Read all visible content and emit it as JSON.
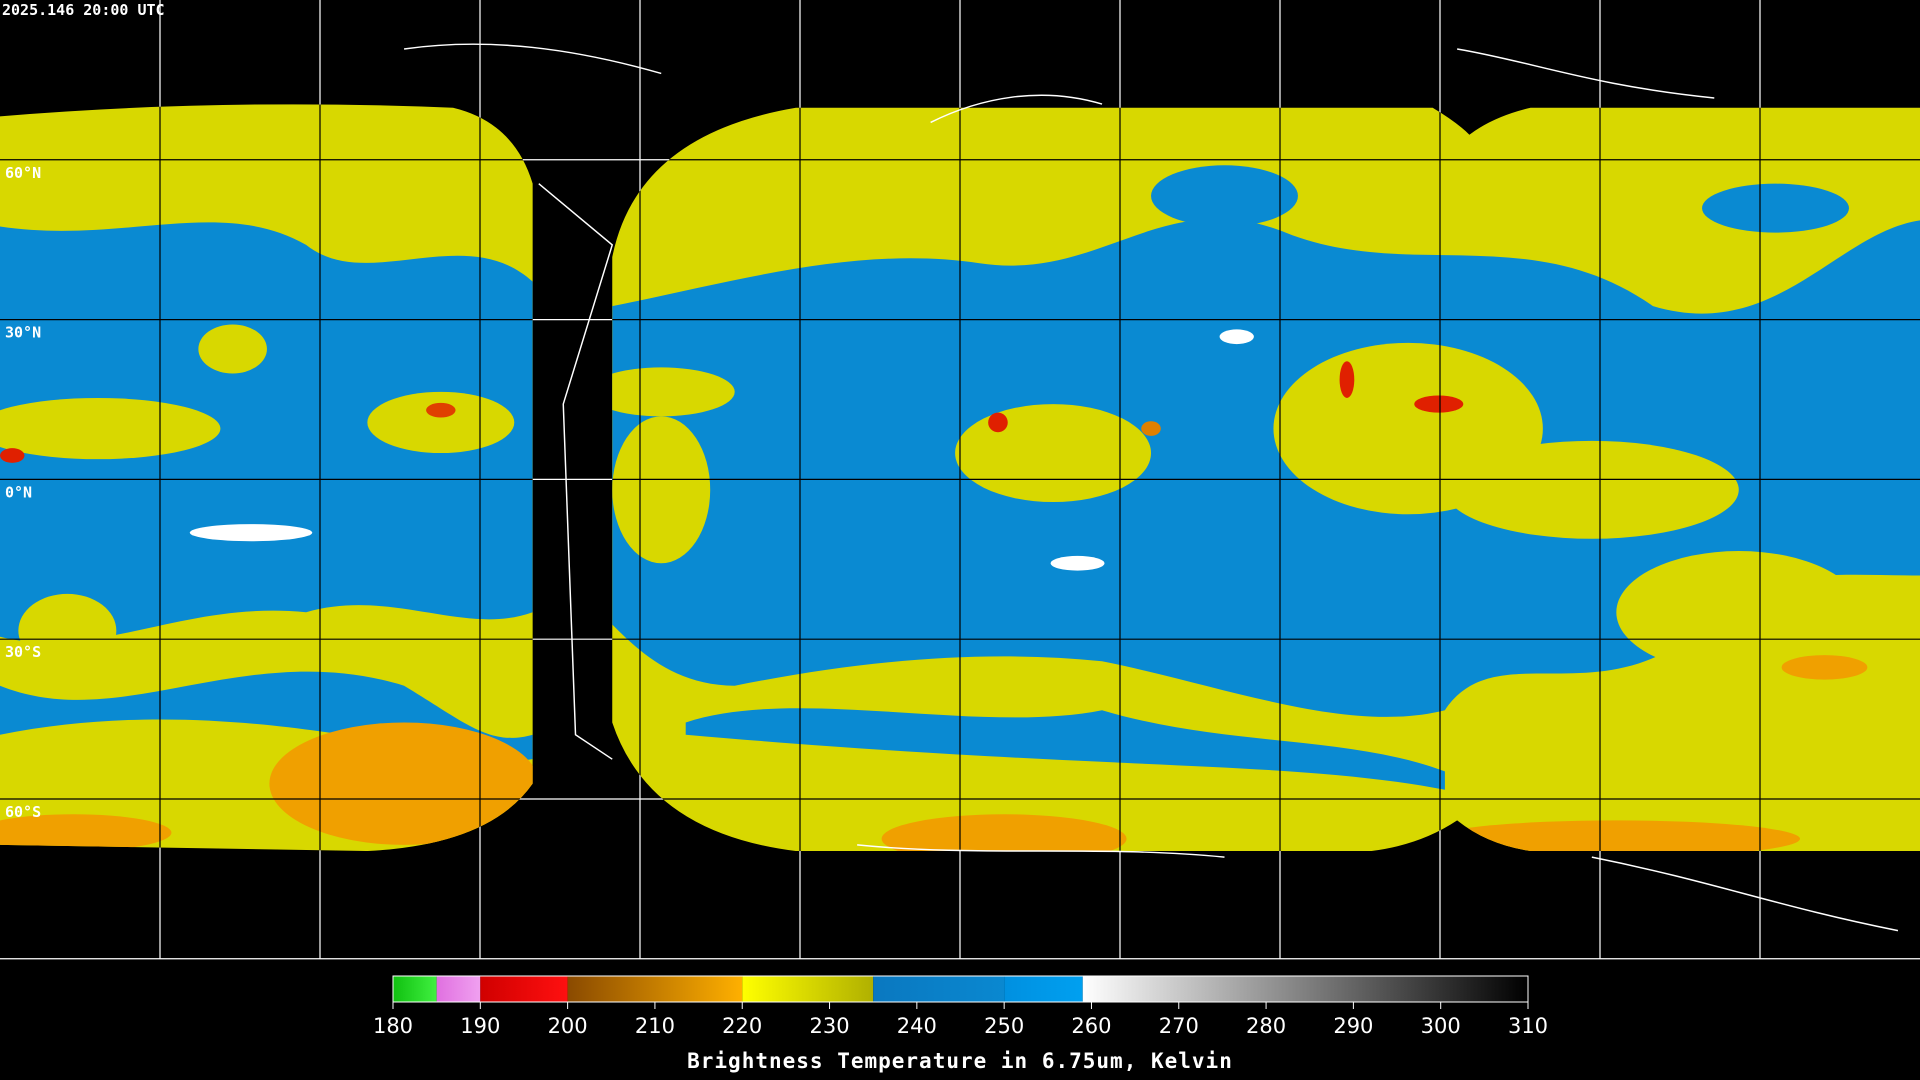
{
  "header": {
    "timestamp": "2025.146 20:00 UTC"
  },
  "map": {
    "latitudes": [
      {
        "value": 60,
        "label": "60°N"
      },
      {
        "value": 30,
        "label": "30°N"
      },
      {
        "value": 0,
        "label": "0°N"
      },
      {
        "value": -30,
        "label": "30°S"
      },
      {
        "value": -60,
        "label": "60°S"
      }
    ]
  },
  "colorbar": {
    "title": "Brightness Temperature in 6.75um, Kelvin",
    "range": [
      180,
      310
    ],
    "ticks": [
      180,
      190,
      200,
      210,
      220,
      230,
      240,
      250,
      260,
      270,
      280,
      290,
      300,
      310
    ],
    "segments": [
      {
        "from": 180,
        "to": 185,
        "colors": [
          "#10c010",
          "#40f040"
        ]
      },
      {
        "from": 185,
        "to": 190,
        "colors": [
          "#e070e0",
          "#f0a0f0"
        ]
      },
      {
        "from": 190,
        "to": 200,
        "colors": [
          "#d00000",
          "#ff1010"
        ]
      },
      {
        "from": 200,
        "to": 220,
        "colors": [
          "#8a4a00",
          "#ffb000"
        ]
      },
      {
        "from": 220,
        "to": 235,
        "colors": [
          "#ffff00",
          "#b0b000"
        ]
      },
      {
        "from": 235,
        "to": 250,
        "colors": [
          "#0a78c0",
          "#0a88d0"
        ]
      },
      {
        "from": 250,
        "to": 259,
        "colors": [
          "#0090e0",
          "#00a0f0"
        ]
      },
      {
        "from": 259,
        "to": 310,
        "colors": [
          "#ffffff",
          "#000000"
        ]
      }
    ]
  }
}
